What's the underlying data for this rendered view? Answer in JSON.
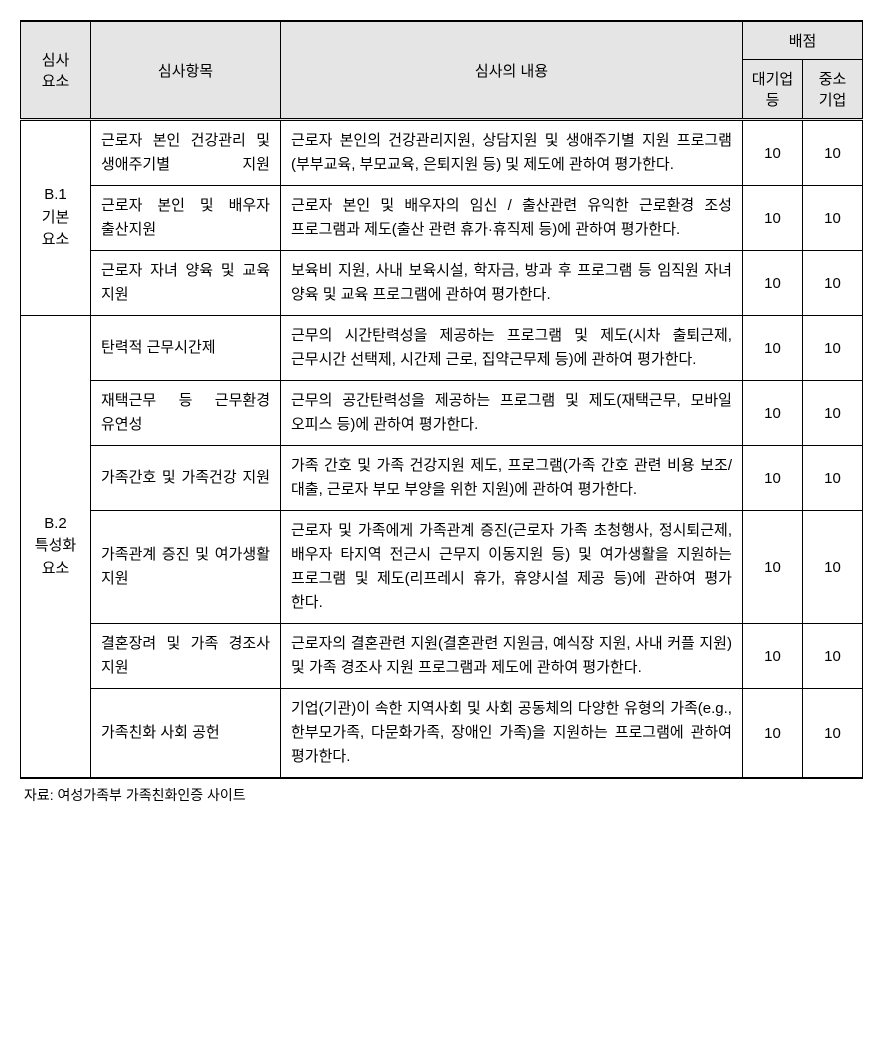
{
  "headers": {
    "element": "심사\n요소",
    "item": "심사항목",
    "content": "심사의 내용",
    "score_group": "배점",
    "score_large": "대기업\n등",
    "score_sme": "중소\n기업"
  },
  "groups": [
    {
      "element": "B.1\n기본\n요소",
      "rows": [
        {
          "item": "근로자 본인 건강관리 및 생애주기별 지원",
          "justify": true,
          "content": "근로자 본인의 건강관리지원, 상담지원 및 생애주기별 지원 프로그램 (부부교육, 부모교육, 은퇴지원 등) 및 제도에 관하여 평가한다.",
          "large": 10,
          "sme": 10
        },
        {
          "item": "근로자 본인 및 배우자 출산지원",
          "justify": true,
          "content": "근로자 본인 및 배우자의 임신 / 출산관련 유익한 근로환경 조성 프로그램과 제도(출산 관련 휴가·휴직제 등)에 관하여 평가한다.",
          "large": 10,
          "sme": 10
        },
        {
          "item": "근로자 자녀 양육 및 교육 지원",
          "justify": true,
          "content": "보육비 지원, 사내 보육시설, 학자금, 방과 후 프로그램 등 임직원 자녀 양육 및 교육 프로그램에 관하여 평가한다.",
          "large": 10,
          "sme": 10
        }
      ]
    },
    {
      "element": "B.2\n특성화\n요소",
      "rows": [
        {
          "item": "탄력적 근무시간제",
          "justify": false,
          "content": "근무의 시간탄력성을 제공하는 프로그램 및 제도(시차 출퇴근제, 근무시간 선택제, 시간제 근로, 집약근무제 등)에 관하여 평가한다.",
          "large": 10,
          "sme": 10
        },
        {
          "item": "재택근무 등 근무환경 유연성",
          "justify": true,
          "content": "근무의 공간탄력성을 제공하는 프로그램 및 제도(재택근무, 모바일 오피스 등)에 관하여 평가한다.",
          "large": 10,
          "sme": 10
        },
        {
          "item": "가족간호 및 가족건강 지원",
          "justify": true,
          "content": "가족 간호 및 가족 건강지원 제도, 프로그램(가족 간호 관련 비용 보조/대출, 근로자 부모 부양을 위한 지원)에 관하여 평가한다.",
          "large": 10,
          "sme": 10
        },
        {
          "item": "가족관계 증진 및 여가생활 지원",
          "justify": true,
          "content": "근로자 및 가족에게 가족관계 증진(근로자 가족 초청행사, 정시퇴근제, 배우자 타지역 전근시 근무지 이동지원 등) 및 여가생활을 지원하는 프로그램 및 제도(리프레시 휴가, 휴양시설 제공 등)에 관하여 평가 한다.",
          "large": 10,
          "sme": 10
        },
        {
          "item": "결혼장려 및 가족 경조사 지원",
          "justify": true,
          "content": "근로자의 결혼관련 지원(결혼관련 지원금, 예식장 지원, 사내 커플 지원) 및 가족 경조사 지원 프로그램과 제도에 관하여 평가한다.",
          "large": 10,
          "sme": 10
        },
        {
          "item": "가족친화 사회 공헌",
          "justify": false,
          "content": "기업(기관)이 속한 지역사회 및 사회 공동체의 다양한 유형의 가족(e.g., 한부모가족, 다문화가족, 장애인 가족)을 지원하는 프로그램에 관하여 평가한다.",
          "large": 10,
          "sme": 10
        }
      ]
    }
  ],
  "source": "자료: 여성가족부 가족친화인증 사이트",
  "styling": {
    "header_bg": "#e5e5e5",
    "border_color": "#000000",
    "body_bg": "#ffffff",
    "font_size_body": 15,
    "font_size_source": 14,
    "line_height": 1.6
  }
}
